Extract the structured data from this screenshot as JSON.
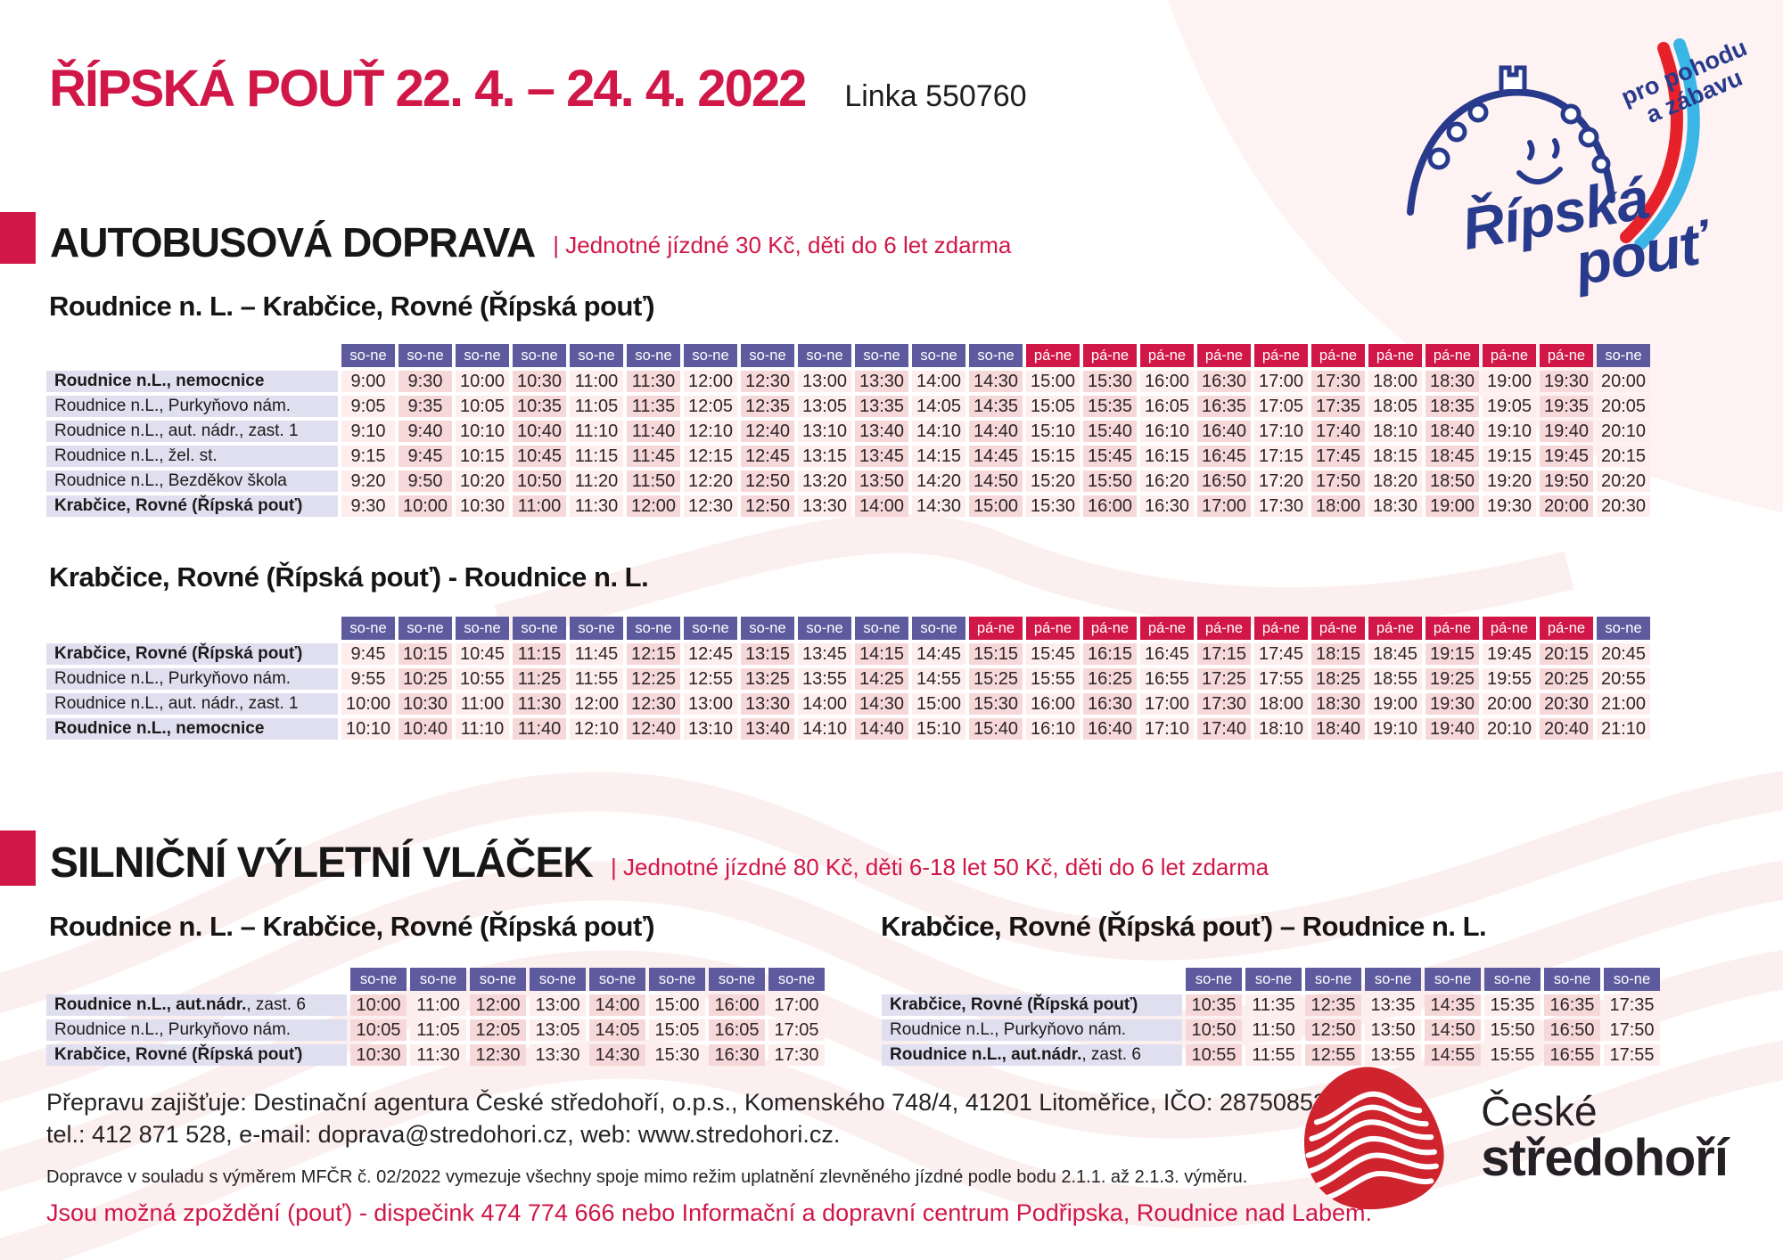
{
  "page": {
    "title": "ŘÍPSKÁ POUŤ 22. 4. – 24. 4. 2022",
    "line_number": "Linka 550760"
  },
  "logo_top": {
    "tagline_line1": "pro pohodu",
    "tagline_line2": "a zábavu",
    "name_line1": "Řípská",
    "name_line2": "pouť"
  },
  "sections": [
    {
      "heading": "AUTOBUSOVÁ DOPRAVA",
      "fare_note": "| Jednotné jízdné 30 Kč, děti do 6 let zdarma"
    },
    {
      "heading": "SILNIČNÍ VÝLETNÍ VLÁČEK",
      "fare_note": "|  Jednotné jízdné 80 Kč, děti 6-18 let 50 Kč, děti do 6 let zdarma"
    }
  ],
  "tables": {
    "bus_out": {
      "title": "Roudnice n. L. – Krabčice, Rovné (Řípská pouť)",
      "days": [
        "so-ne",
        "so-ne",
        "so-ne",
        "so-ne",
        "so-ne",
        "so-ne",
        "so-ne",
        "so-ne",
        "so-ne",
        "so-ne",
        "so-ne",
        "so-ne",
        "pá-ne",
        "pá-ne",
        "pá-ne",
        "pá-ne",
        "pá-ne",
        "pá-ne",
        "pá-ne",
        "pá-ne",
        "pá-ne",
        "pá-ne",
        "so-ne"
      ],
      "rows": [
        {
          "label": "Roudnice n.L., nemocnice",
          "bold": true,
          "times": [
            "9:00",
            "9:30",
            "10:00",
            "10:30",
            "11:00",
            "11:30",
            "12:00",
            "12:30",
            "13:00",
            "13:30",
            "14:00",
            "14:30",
            "15:00",
            "15:30",
            "16:00",
            "16:30",
            "17:00",
            "17:30",
            "18:00",
            "18:30",
            "19:00",
            "19:30",
            "20:00"
          ]
        },
        {
          "label": "Roudnice n.L., Purkyňovo nám.",
          "bold": false,
          "times": [
            "9:05",
            "9:35",
            "10:05",
            "10:35",
            "11:05",
            "11:35",
            "12:05",
            "12:35",
            "13:05",
            "13:35",
            "14:05",
            "14:35",
            "15:05",
            "15:35",
            "16:05",
            "16:35",
            "17:05",
            "17:35",
            "18:05",
            "18:35",
            "19:05",
            "19:35",
            "20:05"
          ]
        },
        {
          "label": "Roudnice n.L., aut. nádr., zast. 1",
          "bold": false,
          "times": [
            "9:10",
            "9:40",
            "10:10",
            "10:40",
            "11:10",
            "11:40",
            "12:10",
            "12:40",
            "13:10",
            "13:40",
            "14:10",
            "14:40",
            "15:10",
            "15:40",
            "16:10",
            "16:40",
            "17:10",
            "17:40",
            "18:10",
            "18:40",
            "19:10",
            "19:40",
            "20:10"
          ]
        },
        {
          "label": "Roudnice n.L., žel. st.",
          "bold": false,
          "times": [
            "9:15",
            "9:45",
            "10:15",
            "10:45",
            "11:15",
            "11:45",
            "12:15",
            "12:45",
            "13:15",
            "13:45",
            "14:15",
            "14:45",
            "15:15",
            "15:45",
            "16:15",
            "16:45",
            "17:15",
            "17:45",
            "18:15",
            "18:45",
            "19:15",
            "19:45",
            "20:15"
          ]
        },
        {
          "label": "Roudnice n.L., Bezděkov škola",
          "bold": false,
          "times": [
            "9:20",
            "9:50",
            "10:20",
            "10:50",
            "11:20",
            "11:50",
            "12:20",
            "12:50",
            "13:20",
            "13:50",
            "14:20",
            "14:50",
            "15:20",
            "15:50",
            "16:20",
            "16:50",
            "17:20",
            "17:50",
            "18:20",
            "18:50",
            "19:20",
            "19:50",
            "20:20"
          ]
        },
        {
          "label": "Krabčice, Rovné (Řípská pouť)",
          "bold": true,
          "times": [
            "9:30",
            "10:00",
            "10:30",
            "11:00",
            "11:30",
            "12:00",
            "12:30",
            "12:50",
            "13:30",
            "14:00",
            "14:30",
            "15:00",
            "15:30",
            "16:00",
            "16:30",
            "17:00",
            "17:30",
            "18:00",
            "18:30",
            "19:00",
            "19:30",
            "20:00",
            "20:30"
          ]
        }
      ]
    },
    "bus_back": {
      "title": "Krabčice, Rovné (Řípská pouť) - Roudnice n. L.",
      "days": [
        "so-ne",
        "so-ne",
        "so-ne",
        "so-ne",
        "so-ne",
        "so-ne",
        "so-ne",
        "so-ne",
        "so-ne",
        "so-ne",
        "so-ne",
        "pá-ne",
        "pá-ne",
        "pá-ne",
        "pá-ne",
        "pá-ne",
        "pá-ne",
        "pá-ne",
        "pá-ne",
        "pá-ne",
        "pá-ne",
        "pá-ne",
        "so-ne"
      ],
      "rows": [
        {
          "label": "Krabčice, Rovné (Řípská pouť)",
          "bold": true,
          "times": [
            "9:45",
            "10:15",
            "10:45",
            "11:15",
            "11:45",
            "12:15",
            "12:45",
            "13:15",
            "13:45",
            "14:15",
            "14:45",
            "15:15",
            "15:45",
            "16:15",
            "16:45",
            "17:15",
            "17:45",
            "18:15",
            "18:45",
            "19:15",
            "19:45",
            "20:15",
            "20:45"
          ]
        },
        {
          "label": "Roudnice n.L., Purkyňovo nám.",
          "bold": false,
          "times": [
            "9:55",
            "10:25",
            "10:55",
            "11:25",
            "11:55",
            "12:25",
            "12:55",
            "13:25",
            "13:55",
            "14:25",
            "14:55",
            "15:25",
            "15:55",
            "16:25",
            "16:55",
            "17:25",
            "17:55",
            "18:25",
            "18:55",
            "19:25",
            "19:55",
            "20:25",
            "20:55"
          ]
        },
        {
          "label": "Roudnice n.L., aut. nádr., zast. 1",
          "bold": false,
          "times": [
            "10:00",
            "10:30",
            "11:00",
            "11:30",
            "12:00",
            "12:30",
            "13:00",
            "13:30",
            "14:00",
            "14:30",
            "15:00",
            "15:30",
            "16:00",
            "16:30",
            "17:00",
            "17:30",
            "18:00",
            "18:30",
            "19:00",
            "19:30",
            "20:00",
            "20:30",
            "21:00"
          ]
        },
        {
          "label": "Roudnice n.L., nemocnice",
          "bold": true,
          "times": [
            "10:10",
            "10:40",
            "11:10",
            "11:40",
            "12:10",
            "12:40",
            "13:10",
            "13:40",
            "14:10",
            "14:40",
            "15:10",
            "15:40",
            "16:10",
            "16:40",
            "17:10",
            "17:40",
            "18:10",
            "18:40",
            "19:10",
            "19:40",
            "20:10",
            "20:40",
            "21:10"
          ]
        }
      ]
    },
    "train_out": {
      "title": "Roudnice n. L. – Krabčice, Rovné (Řípská pouť)",
      "days": [
        "so-ne",
        "so-ne",
        "so-ne",
        "so-ne",
        "so-ne",
        "so-ne",
        "so-ne",
        "so-ne"
      ],
      "rows": [
        {
          "label": "Roudnice n.L., aut.nádr.",
          "suffix": ", zast. 6",
          "bold": true,
          "times": [
            "10:00",
            "11:00",
            "12:00",
            "13:00",
            "14:00",
            "15:00",
            "16:00",
            "17:00"
          ]
        },
        {
          "label": "Roudnice n.L., Purkyňovo nám.",
          "bold": false,
          "times": [
            "10:05",
            "11:05",
            "12:05",
            "13:05",
            "14:05",
            "15:05",
            "16:05",
            "17:05"
          ]
        },
        {
          "label": "Krabčice, Rovné (Řípská pouť)",
          "bold": true,
          "times": [
            "10:30",
            "11:30",
            "12:30",
            "13:30",
            "14:30",
            "15:30",
            "16:30",
            "17:30"
          ]
        }
      ]
    },
    "train_back": {
      "title": "Krabčice, Rovné (Řípská pouť)  – Roudnice n. L.",
      "days": [
        "so-ne",
        "so-ne",
        "so-ne",
        "so-ne",
        "so-ne",
        "so-ne",
        "so-ne",
        "so-ne"
      ],
      "rows": [
        {
          "label": "Krabčice, Rovné (Řípská pouť)",
          "bold": true,
          "times": [
            "10:35",
            "11:35",
            "12:35",
            "13:35",
            "14:35",
            "15:35",
            "16:35",
            "17:35"
          ]
        },
        {
          "label": "Roudnice n.L., Purkyňovo nám.",
          "bold": false,
          "times": [
            "10:50",
            "11:50",
            "12:50",
            "13:50",
            "14:50",
            "15:50",
            "16:50",
            "17:50"
          ]
        },
        {
          "label": "Roudnice n.L., aut.nádr.",
          "suffix": ", zast. 6",
          "bold": true,
          "times": [
            "10:55",
            "11:55",
            "12:55",
            "13:55",
            "14:55",
            "15:55",
            "16:55",
            "17:55"
          ]
        }
      ]
    }
  },
  "footer": {
    "operator_line1": "Přepravu zajišťuje: Destinační agentura České středohoří, o.p.s., Komenského 748/4, 41201 Litoměřice,  IČO: 28750853,",
    "operator_line2": "tel.: 412 871 528, e-mail: doprava@stredohori.cz, web: www.stredohori.cz.",
    "note_small": "Dopravce v souladu s výměrem MFČR č. 02/2022 vymezuje všechny spoje mimo režim uplatnění zlevněného jízdné podle bodu 2.1.1. až 2.1.3. výměru.",
    "delay_note": "Jsou možná zpoždění (pouť) - dispečink 474 774 666 nebo Informační a dopravní centrum Podřipska, Roudnice nad Labem."
  },
  "logo_bottom": {
    "line1": "České",
    "line2": "středohoří"
  },
  "colors": {
    "crimson": "#d01747",
    "day_weekend_bg": "#5d5b9e",
    "day_friday_bg": "#d01747",
    "label_bg": "#e0dfef",
    "cell_light": "#fdeded",
    "cell_dark": "#f7d8d8",
    "logo_navy": "#283a8c",
    "logo_cyan": "#3ab6e6",
    "logo_red": "#cf232e"
  }
}
